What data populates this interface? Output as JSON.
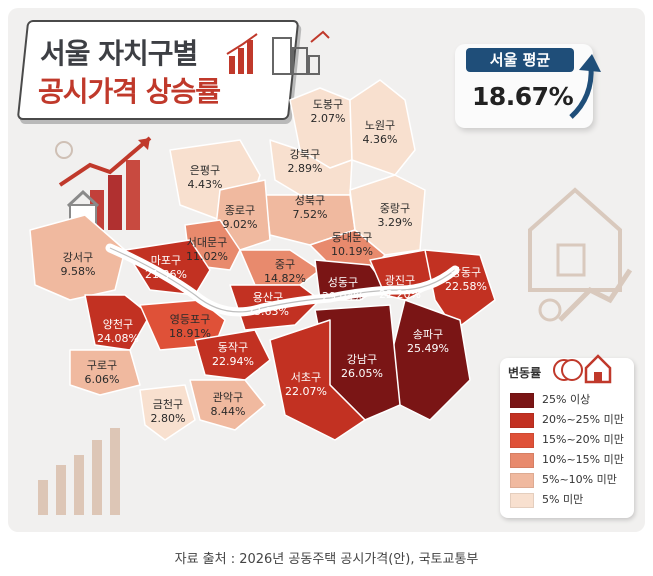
{
  "title": {
    "line1": "서울 자치구별",
    "line2": "공시가격 상승률"
  },
  "average": {
    "label": "서울 평균",
    "value": "18.67%"
  },
  "legend": {
    "title": "변동률",
    "items": [
      {
        "label": "25% 이상",
        "color": "#7a1515"
      },
      {
        "label": "20%~25% 미만",
        "color": "#c23122"
      },
      {
        "label": "15%~20% 미만",
        "color": "#df5138"
      },
      {
        "label": "10%~15% 미만",
        "color": "#e88a6d"
      },
      {
        "label": "5%~10% 미만",
        "color": "#f0b99f"
      },
      {
        "label": "5% 미만",
        "color": "#f8e0cf"
      }
    ]
  },
  "source": "자료 출처 : 2026년 공동주택 공시가격(안), 국토교통부",
  "chart_data": {
    "type": "choropleth map",
    "title": "서울 자치구별 공시가격 상승률",
    "unit": "%",
    "average": 18.67,
    "districts": [
      {
        "name": "도봉구",
        "value": 2.07,
        "label": "2.07%"
      },
      {
        "name": "노원구",
        "value": 4.36,
        "label": "4.36%"
      },
      {
        "name": "강북구",
        "value": 2.89,
        "label": "2.89%"
      },
      {
        "name": "은평구",
        "value": 4.43,
        "label": "4.43%"
      },
      {
        "name": "성북구",
        "value": 7.52,
        "label": "7.52%"
      },
      {
        "name": "종로구",
        "value": 9.02,
        "label": "9.02%"
      },
      {
        "name": "중랑구",
        "value": 3.29,
        "label": "3.29%"
      },
      {
        "name": "서대문구",
        "value": 11.02,
        "label": "11.02%"
      },
      {
        "name": "동대문구",
        "value": 10.19,
        "label": "10.19%"
      },
      {
        "name": "강서구",
        "value": 9.58,
        "label": "9.58%"
      },
      {
        "name": "마포구",
        "value": 21.36,
        "label": "21.36%"
      },
      {
        "name": "중구",
        "value": 14.82,
        "label": "14.82%"
      },
      {
        "name": "성동구",
        "value": 29.04,
        "label": "29.04%"
      },
      {
        "name": "광진구",
        "value": 22.2,
        "label": "22.20%"
      },
      {
        "name": "강동구",
        "value": 22.58,
        "label": "22.58%"
      },
      {
        "name": "용산구",
        "value": 23.63,
        "label": "23.63%"
      },
      {
        "name": "양천구",
        "value": 24.08,
        "label": "24.08%"
      },
      {
        "name": "영등포구",
        "value": 18.91,
        "label": "18.91%"
      },
      {
        "name": "송파구",
        "value": 25.49,
        "label": "25.49%"
      },
      {
        "name": "동작구",
        "value": 22.94,
        "label": "22.94%"
      },
      {
        "name": "강남구",
        "value": 26.05,
        "label": "26.05%"
      },
      {
        "name": "구로구",
        "value": 6.06,
        "label": "6.06%"
      },
      {
        "name": "서초구",
        "value": 22.07,
        "label": "22.07%"
      },
      {
        "name": "관악구",
        "value": 8.44,
        "label": "8.44%"
      },
      {
        "name": "금천구",
        "value": 2.8,
        "label": "2.80%"
      }
    ]
  }
}
